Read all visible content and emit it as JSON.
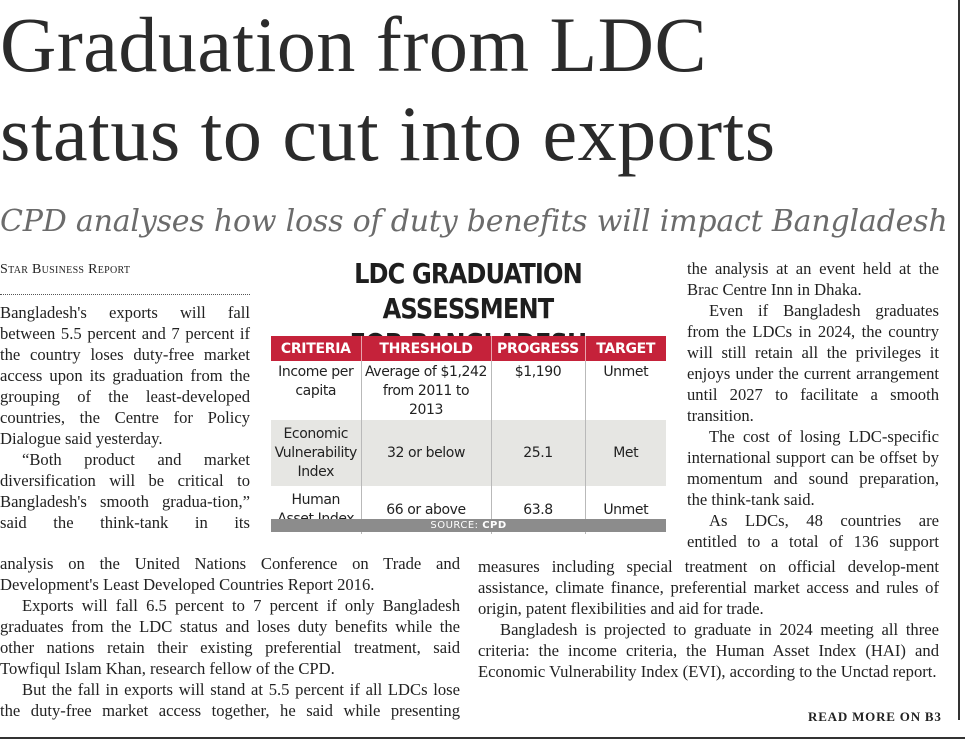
{
  "headline": {
    "line1": "Graduation from LDC",
    "line2": "status to cut into exports"
  },
  "subhead": "CPD analyses how loss of duty benefits will impact Bangladesh",
  "byline": "Star Business Report",
  "infographic": {
    "title_line1": "LDC GRADUATION ASSESSMENT",
    "title_line2": "FOR BANGLADESH",
    "headers": [
      "CRITERIA",
      "THRESHOLD",
      "PROGRESS",
      "TARGET"
    ],
    "rows": [
      {
        "criteria": "Income per capita",
        "threshold": "Average of $1,242 from 2011 to 2013",
        "progress": "$1,190",
        "target": "Unmet"
      },
      {
        "criteria": "Economic Vulnerability Index",
        "threshold": "32 or below",
        "progress": "25.1",
        "target": "Met"
      },
      {
        "criteria": "Human Asset Index",
        "threshold": "66 or above",
        "progress": "63.8",
        "target": "Unmet"
      }
    ],
    "source_label": "SOURCE: ",
    "source_name": "CPD",
    "colors": {
      "header": "#c5223a",
      "shaded_row": "#e6e6e3",
      "source_bar": "#8c8c8c"
    }
  },
  "body": {
    "p1": "Bangladesh's exports will fall between 5.5 percent and 7 percent if the country loses duty-free market access upon its graduation from the grouping of the least-developed countries, the Centre for Policy Dialogue said yesterday.",
    "p2_col": "“Both product and market diversification will be critical to Bangladesh's smooth gradua-tion,” said the think-tank in its",
    "p2_wide": "analysis on the United Nations Conference on Trade and Development's Least Developed Countries Report 2016.",
    "p3": "Exports will fall 6.5 percent to 7 percent if only Bangladesh graduates from the LDC status and loses duty benefits while the other nations retain their existing preferential treatment, said Towfiqul Islam Khan, research fellow of the CPD.",
    "p4": "But the fall in exports will stand at 5.5 percent if all LDCs lose the duty-free market access together, he said while presenting",
    "p4_cont": "the analysis at an event held at the Brac Centre Inn in Dhaka.",
    "p5": "Even if Bangladesh graduates from the LDCs in 2024, the country will still retain all the privileges it enjoys under the current arrangement until 2027 to facilitate a smooth transition.",
    "p6": "The cost of losing LDC-specific international support can be offset by momentum and sound preparation, the think-tank said.",
    "p7_col": "As LDCs, 48 countries are entitled to a total of 136 support",
    "p7_wide": "measures including special treatment on official develop-ment assistance, climate finance, preferential market access and rules of origin, patent flexibilities and aid for trade.",
    "p8": "Bangladesh is projected to graduate in 2024 meeting all three criteria: the income criteria, the Human Asset Index (HAI) and Economic Vulnerability Index (EVI), according to the Unctad report."
  },
  "read_more": "READ MORE ON B3"
}
